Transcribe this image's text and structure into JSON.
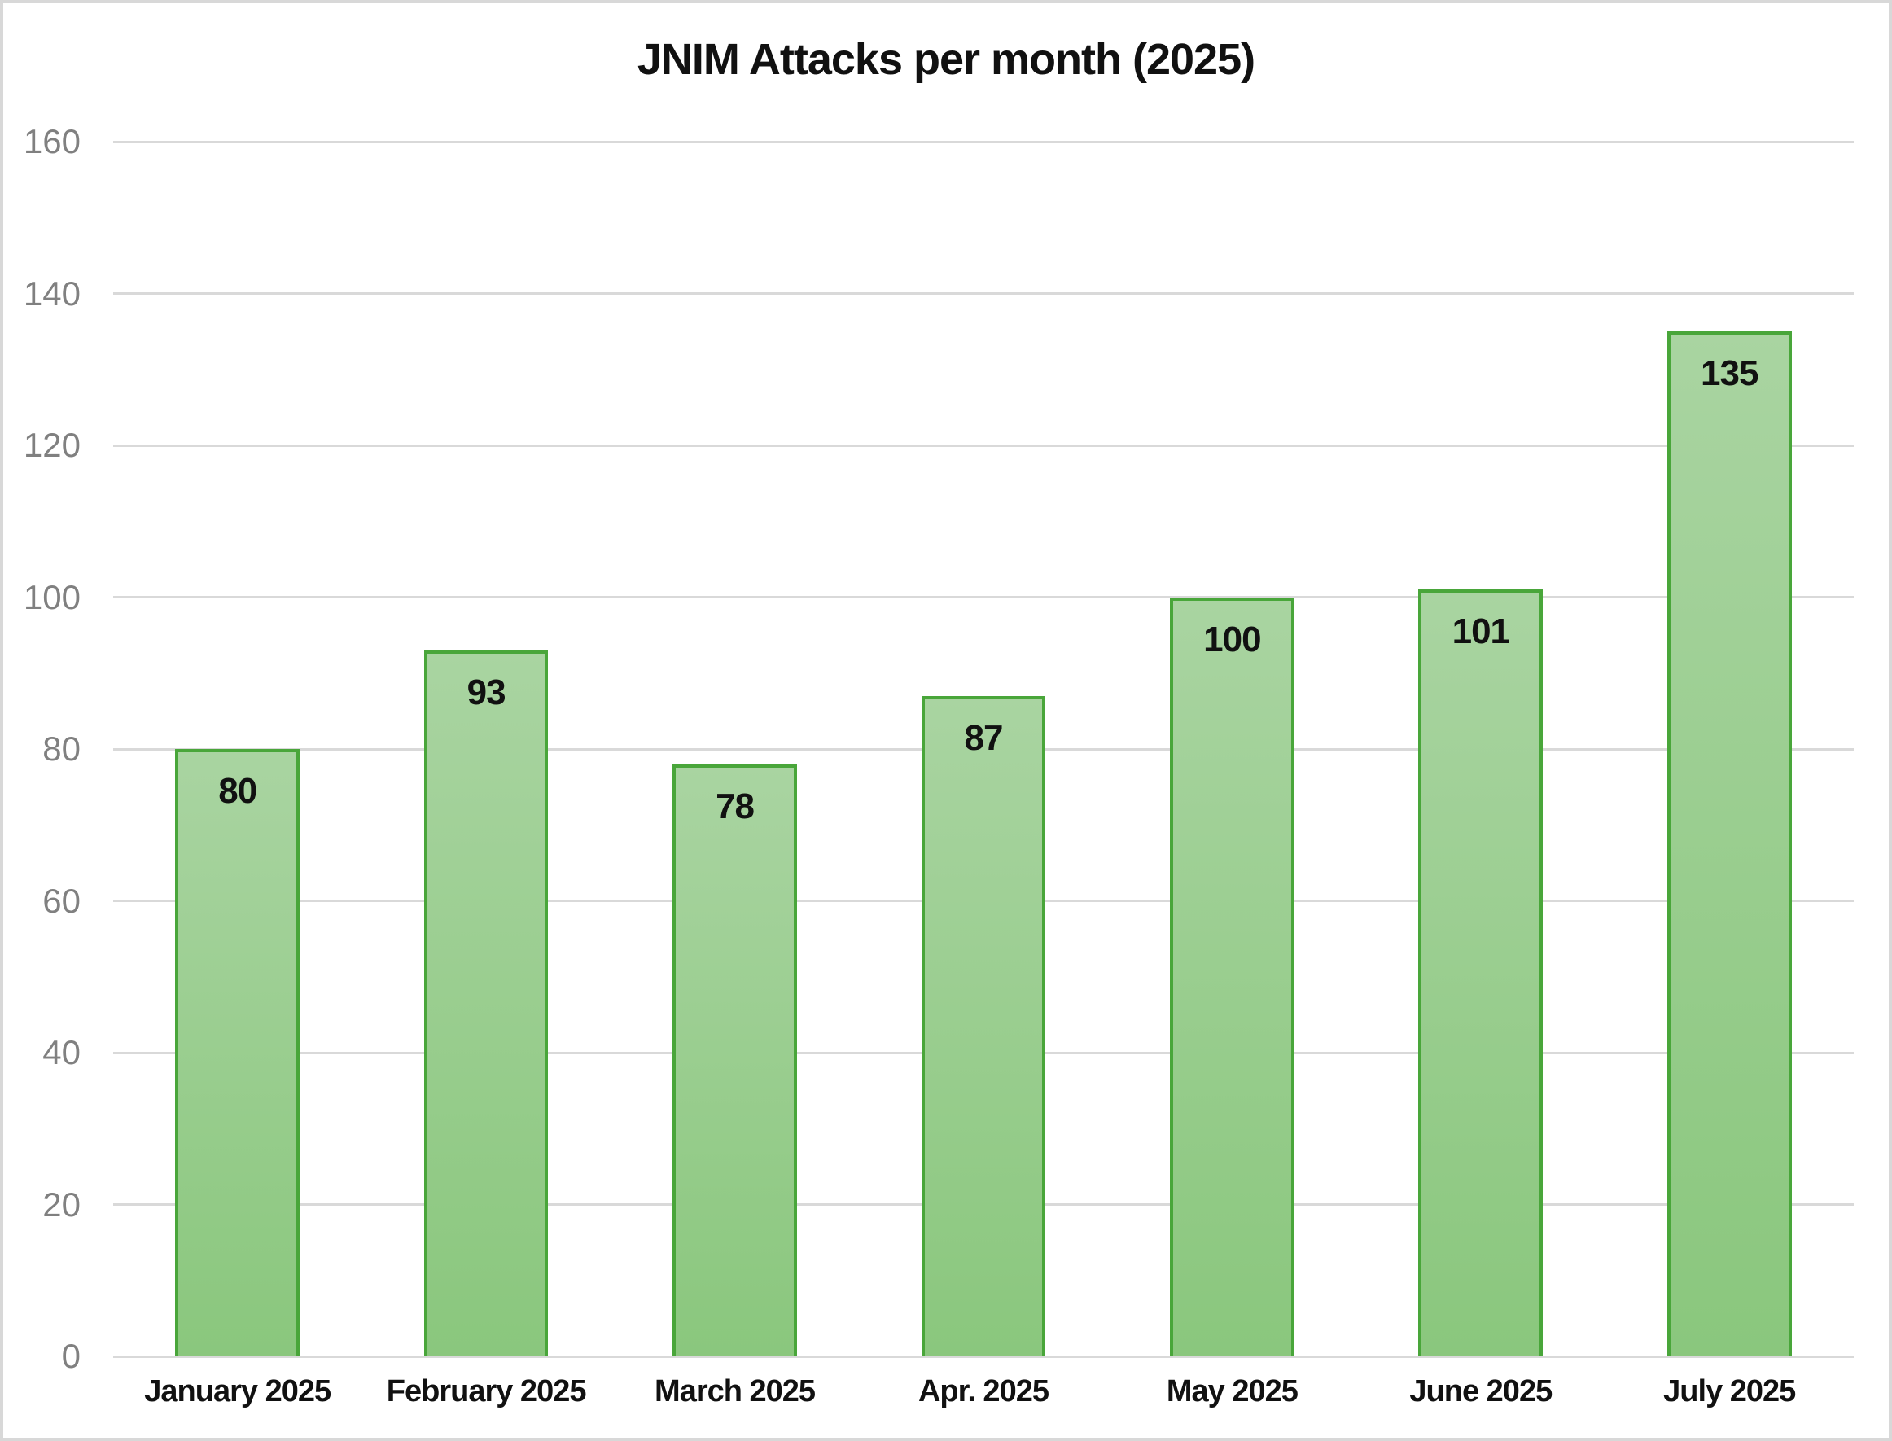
{
  "title": "JNIM Attacks per month (2025)",
  "chart_data": {
    "type": "bar",
    "title": "JNIM Attacks per month (2025)",
    "categories": [
      "January 2025",
      "February 2025",
      "March 2025",
      "Apr. 2025",
      "May 2025",
      "June 2025",
      "July 2025"
    ],
    "values": [
      80,
      93,
      78,
      87,
      100,
      101,
      135
    ],
    "xlabel": "",
    "ylabel": "",
    "ylim": [
      0,
      160
    ],
    "yticks": [
      0,
      20,
      40,
      60,
      80,
      100,
      120,
      140,
      160
    ],
    "grid": true,
    "legend_position": "none",
    "bar_value_labels": [
      80,
      93,
      78,
      87,
      100,
      101,
      135
    ]
  },
  "colors": {
    "bar_fill_top": "#a9d4a1",
    "bar_fill_bottom": "#8ac77d",
    "bar_border": "#49a63a",
    "gridline": "#d9d9d9",
    "tick_label": "#808080",
    "text": "#111111",
    "frame_border": "#d8d8d8",
    "background": "#ffffff"
  }
}
